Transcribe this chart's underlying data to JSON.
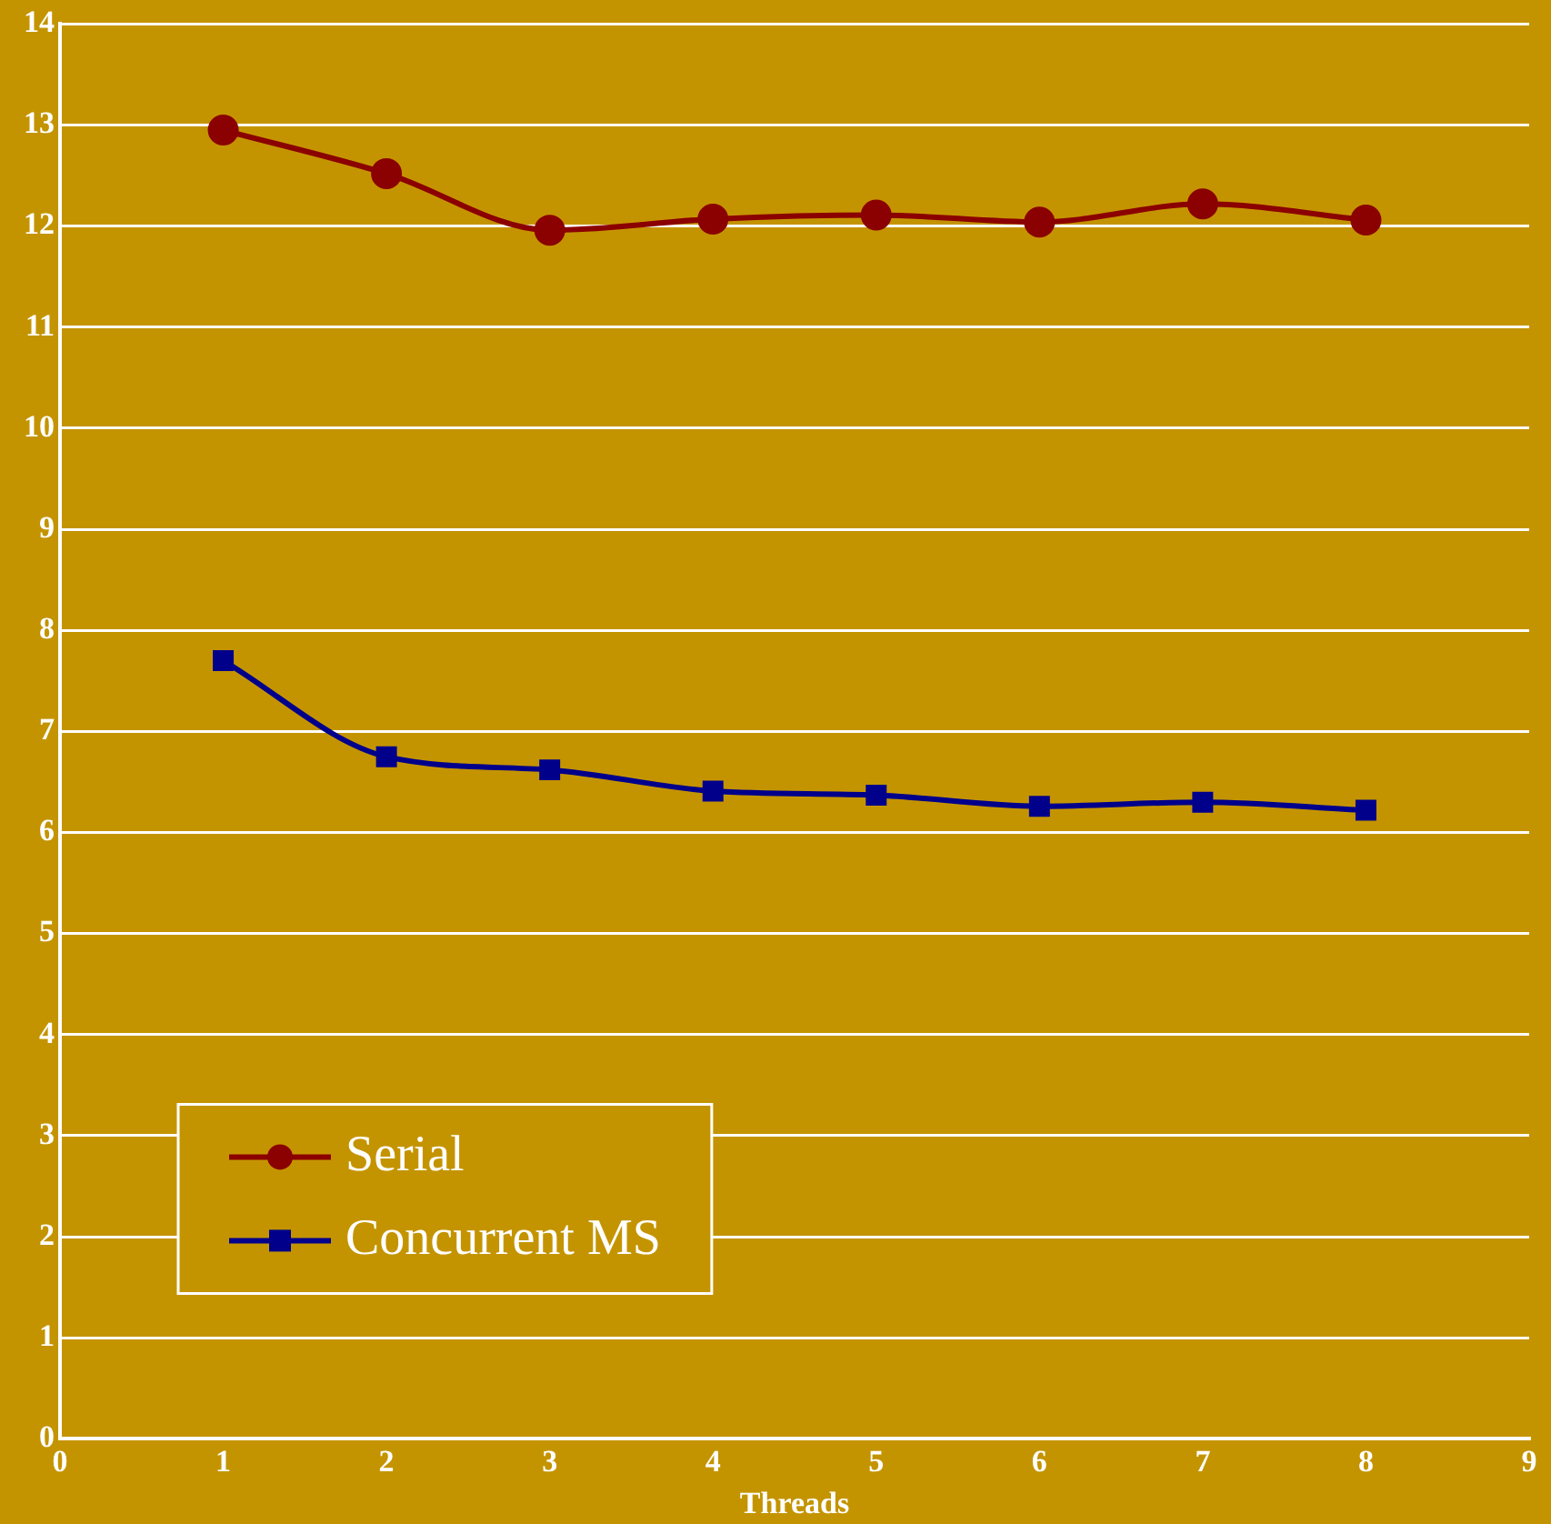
{
  "chart_data": {
    "type": "line",
    "xlabel": "Threads",
    "x": [
      1,
      2,
      3,
      4,
      5,
      6,
      7,
      8
    ],
    "series": [
      {
        "name": "Serial",
        "color": "#8b0000",
        "marker": "circle",
        "values": [
          12.95,
          12.52,
          11.96,
          12.07,
          12.11,
          12.04,
          12.22,
          12.06
        ]
      },
      {
        "name": "Concurrent MS",
        "color": "#00008b",
        "marker": "square",
        "values": [
          7.7,
          6.75,
          6.62,
          6.41,
          6.37,
          6.26,
          6.3,
          6.22
        ]
      }
    ],
    "xlim": [
      0,
      9
    ],
    "xticks": [
      0,
      1,
      2,
      3,
      4,
      5,
      6,
      7,
      8,
      9
    ],
    "ylim": [
      0,
      14
    ],
    "yticks": [
      0,
      1,
      2,
      3,
      4,
      5,
      6,
      7,
      8,
      9,
      10,
      11,
      12,
      13,
      14
    ],
    "grid": "y",
    "legend": "bottom left",
    "line_style": "solid"
  }
}
